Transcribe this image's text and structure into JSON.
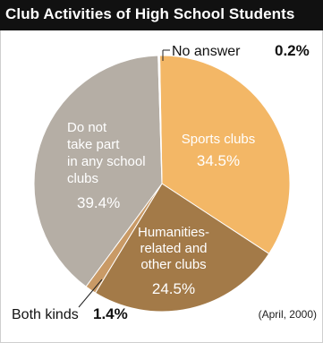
{
  "title": "Club Activities of High School Students",
  "source_note": "(April, 2000)",
  "colors": {
    "title_bg": "#111111",
    "sports": "#f3b766",
    "humanities": "#a37a48",
    "both": "#c99a66",
    "none": "#b5aea5",
    "no_answer": "#ffffff"
  },
  "chart_data": {
    "type": "pie",
    "title": "Club Activities of High School Students",
    "slices": [
      {
        "label": "Sports clubs",
        "value": 34.5,
        "value_label": "34.5%"
      },
      {
        "label": "Humanities-related and other clubs",
        "value": 24.5,
        "value_label": "24.5%"
      },
      {
        "label": "Both kinds",
        "value": 1.4,
        "value_label": "1.4%"
      },
      {
        "label": "Do not take part in any school clubs",
        "value": 39.4,
        "value_label": "39.4%"
      },
      {
        "label": "No answer",
        "value": 0.2,
        "value_label": "0.2%"
      }
    ]
  },
  "labels": {
    "sports_name": "Sports clubs",
    "sports_value": "34.5%",
    "humanities_lines": [
      "Humanities-",
      "related and",
      "other clubs"
    ],
    "humanities_value": "24.5%",
    "none_lines": [
      "Do not",
      "take part",
      "in any school",
      "clubs"
    ],
    "none_value": "39.4%",
    "both_name": "Both kinds",
    "both_value": "1.4%",
    "no_answer_name": "No answer",
    "no_answer_value": "0.2%"
  }
}
